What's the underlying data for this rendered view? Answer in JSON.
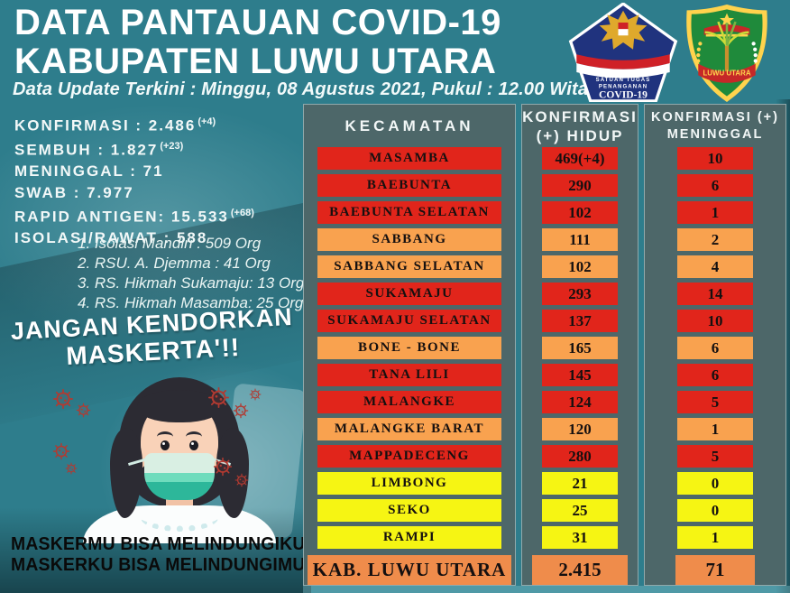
{
  "header": {
    "title_line1": "DATA PANTAUAN COVID-19",
    "title_line2": "KABUPATEN LUWU UTARA",
    "subtitle": "Data Update Terkini : Minggu, 08 Agustus 2021, Pukul : 12.00 Wita",
    "logos": {
      "satgas": {
        "line1": "SATUAN TUGAS",
        "line2": "PENANGANAN",
        "line3": "COVID-19"
      },
      "crest": {
        "label": "LUWU UTARA"
      }
    }
  },
  "summary": {
    "stats": [
      {
        "text": "KONFIRMASI : 2.486",
        "delta": "(+4)"
      },
      {
        "text": "SEMBUH : 1.827",
        "delta": "(+23)"
      },
      {
        "text": "MENINGGAL : 71",
        "delta": ""
      },
      {
        "text": "SWAB : 7.977",
        "delta": ""
      },
      {
        "text": "RAPID ANTIGEN: 15.533",
        "delta": "(+68)"
      },
      {
        "text": "ISOLASI/RAWAT : 588",
        "delta": ""
      }
    ],
    "care_breakdown": [
      "1. Isolasi Mandiri : 509 Org",
      "2. RSU. A. Djemma : 41 Org",
      "3. RS. Hikmah Sukamaju: 13 Org",
      "4. RS. Hikmah Masamba: 25 Org"
    ],
    "slogan_line1": "JANGAN KENDORKAN",
    "slogan_line2": "MASKERTA'!!",
    "footer_line1": "MASKERMU BISA MELINDUNGIKU",
    "footer_line2": "MASKERKU BISA MELINDUNGIMU"
  },
  "table": {
    "columns": [
      {
        "line1": "KECAMATAN",
        "line2": ""
      },
      {
        "line1": "KONFIRMASI",
        "line2": "(+) HIDUP"
      },
      {
        "line1": "KONFIRMASI (+)",
        "line2": "MENINGGAL"
      }
    ],
    "rows": [
      {
        "kecamatan": "MASAMBA",
        "hidup": "469(+4)",
        "meninggal": "10",
        "color": "red"
      },
      {
        "kecamatan": "BAEBUNTA",
        "hidup": "290",
        "meninggal": "6",
        "color": "red"
      },
      {
        "kecamatan": "BAEBUNTA SELATAN",
        "hidup": "102",
        "meninggal": "1",
        "color": "red"
      },
      {
        "kecamatan": "SABBANG",
        "hidup": "111",
        "meninggal": "2",
        "color": "orange"
      },
      {
        "kecamatan": "SABBANG SELATAN",
        "hidup": "102",
        "meninggal": "4",
        "color": "orange"
      },
      {
        "kecamatan": "SUKAMAJU",
        "hidup": "293",
        "meninggal": "14",
        "color": "red"
      },
      {
        "kecamatan": "SUKAMAJU SELATAN",
        "hidup": "137",
        "meninggal": "10",
        "color": "red"
      },
      {
        "kecamatan": "BONE - BONE",
        "hidup": "165",
        "meninggal": "6",
        "color": "orange"
      },
      {
        "kecamatan": "TANA LILI",
        "hidup": "145",
        "meninggal": "6",
        "color": "red"
      },
      {
        "kecamatan": "MALANGKE",
        "hidup": "124",
        "meninggal": "5",
        "color": "red"
      },
      {
        "kecamatan": "MALANGKE BARAT",
        "hidup": "120",
        "meninggal": "1",
        "color": "orange"
      },
      {
        "kecamatan": "MAPPADECENG",
        "hidup": "280",
        "meninggal": "5",
        "color": "red"
      },
      {
        "kecamatan": "LIMBONG",
        "hidup": "21",
        "meninggal": "0",
        "color": "yellow"
      },
      {
        "kecamatan": "SEKO",
        "hidup": "25",
        "meninggal": "0",
        "color": "yellow"
      },
      {
        "kecamatan": "RAMPI",
        "hidup": "31",
        "meninggal": "1",
        "color": "yellow"
      }
    ],
    "total": {
      "kecamatan": "KAB. LUWU UTARA",
      "hidup": "2.415",
      "meninggal": "71"
    }
  },
  "colors": {
    "background_teal": "#2e7d8c",
    "panel_slate": "#4d6769",
    "row_red": "#e1251b",
    "row_orange": "#f9a24f",
    "row_yellow": "#f6f513",
    "total_orange": "#ef8c4b",
    "satgas_blue": "#20337e",
    "crest_green": "#1f8a3b",
    "mask_teal": "#2db79a",
    "virus_red": "#b23a31"
  }
}
